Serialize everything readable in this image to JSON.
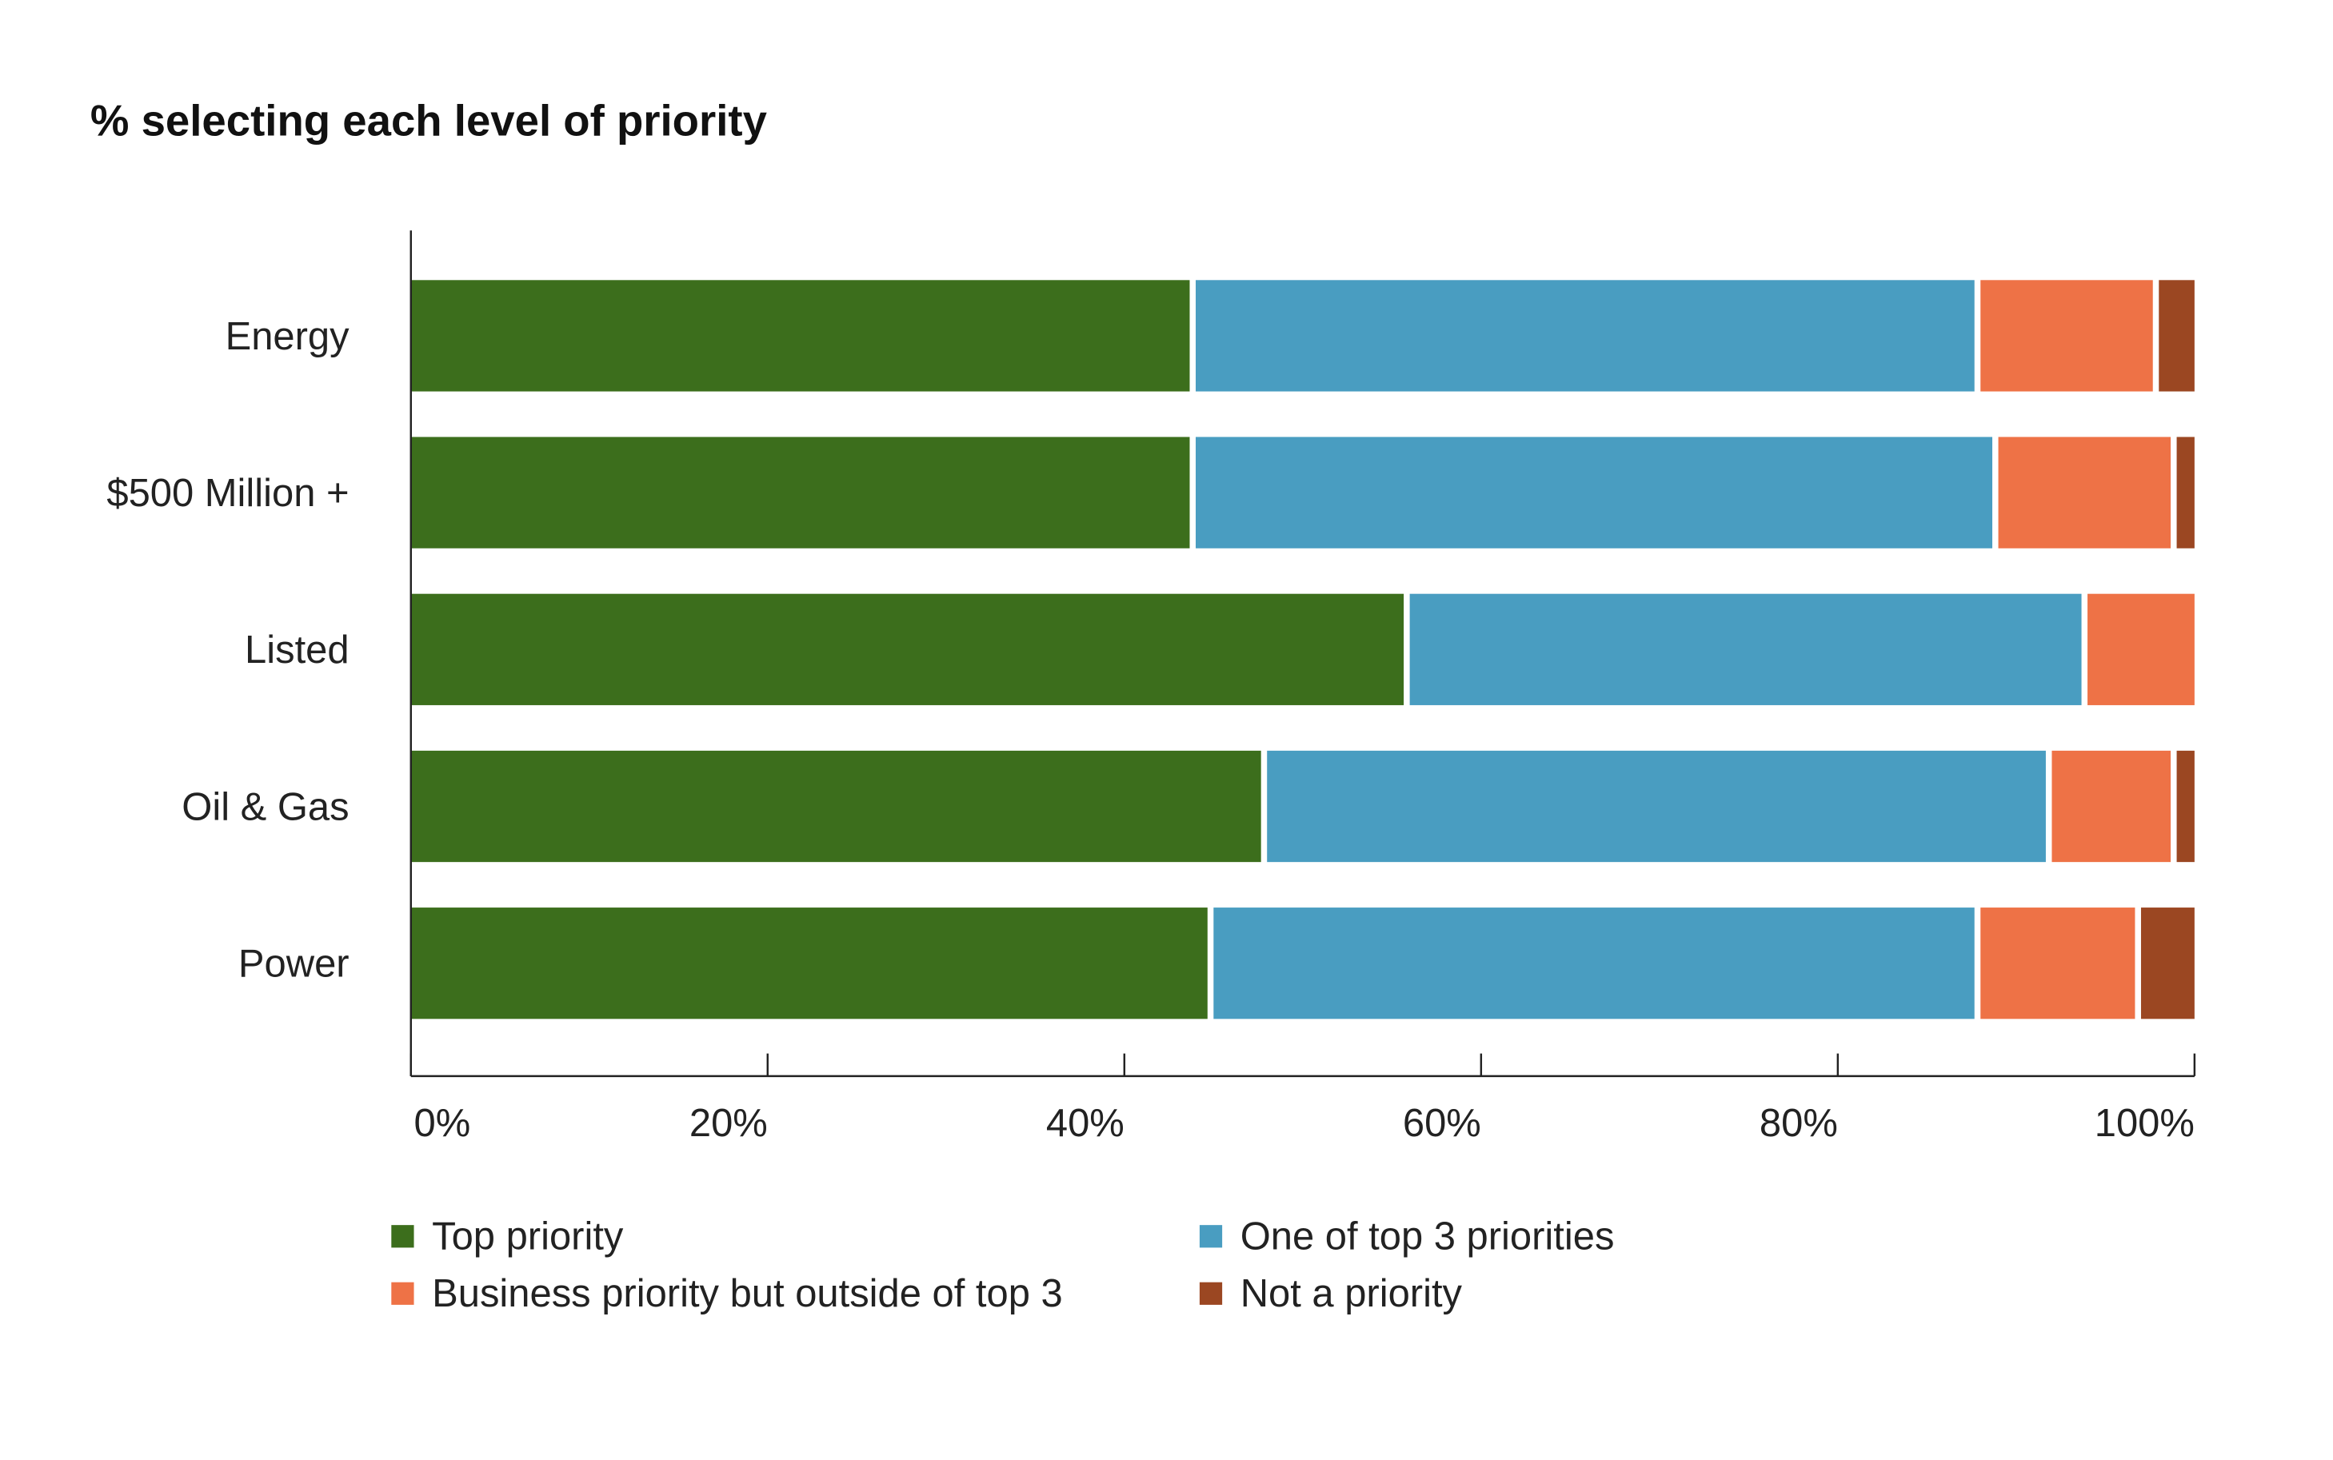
{
  "chart_data": {
    "type": "bar",
    "orientation": "horizontal",
    "stacked": true,
    "title": "% selecting each level of priority",
    "categories": [
      "Energy",
      "$500 Million +",
      "Listed",
      "Oil & Gas",
      "Power"
    ],
    "series": [
      {
        "name": "Top priority",
        "color": "#3c6e1c",
        "values": [
          44,
          44,
          56,
          48,
          45
        ]
      },
      {
        "name": "One of top 3 priorities",
        "color": "#499dc1",
        "values": [
          44,
          45,
          38,
          44,
          43
        ]
      },
      {
        "name": "Business priority but outside of top 3",
        "color": "#ee7246",
        "values": [
          10,
          10,
          6,
          7,
          9
        ]
      },
      {
        "name": "Not a priority",
        "color": "#9b4722",
        "values": [
          2,
          1,
          0,
          1,
          3
        ]
      }
    ],
    "xlim": [
      0,
      100
    ],
    "xticks": [
      "0%",
      "20%",
      "40%",
      "60%",
      "80%",
      "100%"
    ],
    "grid": false,
    "legend_placement": "bottom"
  }
}
